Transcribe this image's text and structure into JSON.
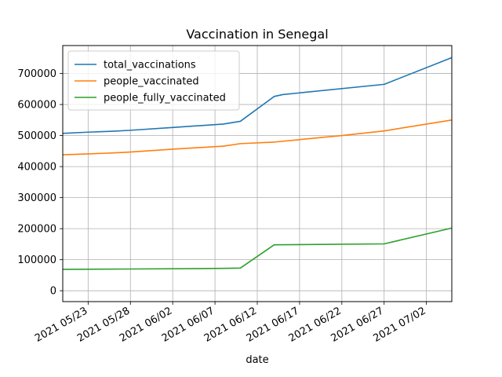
{
  "chart_data": {
    "type": "line",
    "title": "Vaccination in Senegal",
    "xlabel": "date",
    "ylabel": "",
    "x_type": "date",
    "xlim": [
      "2021-05-20",
      "2021-07-05"
    ],
    "ylim": [
      -35000,
      790000
    ],
    "x_ticks": [
      "2021-05-23",
      "2021-05-28",
      "2021-06-02",
      "2021-06-07",
      "2021-06-12",
      "2021-06-17",
      "2021-06-22",
      "2021-06-27",
      "2021-07-02"
    ],
    "x_tick_labels": [
      "2021 05/23",
      "2021 05/28",
      "2021 06/02",
      "2021 06/07",
      "2021 06/12",
      "2021 06/17",
      "2021 06/22",
      "2021 06/27",
      "2021 07/02"
    ],
    "y_ticks": [
      0,
      100000,
      200000,
      300000,
      400000,
      500000,
      600000,
      700000
    ],
    "y_tick_labels": [
      "0",
      "100000",
      "200000",
      "300000",
      "400000",
      "500000",
      "600000",
      "700000"
    ],
    "grid": true,
    "legend_position": "top-left",
    "series": [
      {
        "name": "total_vaccinations",
        "color": "#1f77b4",
        "points": [
          [
            "2021-05-20",
            507000
          ],
          [
            "2021-05-23",
            511000
          ],
          [
            "2021-05-26",
            514000
          ],
          [
            "2021-05-28",
            517000
          ],
          [
            "2021-06-02",
            526000
          ],
          [
            "2021-06-08",
            537000
          ],
          [
            "2021-06-10",
            546000
          ],
          [
            "2021-06-14",
            626000
          ],
          [
            "2021-06-15",
            632000
          ],
          [
            "2021-06-27",
            665000
          ],
          [
            "2021-07-05",
            751000
          ]
        ]
      },
      {
        "name": "people_vaccinated",
        "color": "#ff7f0e",
        "points": [
          [
            "2021-05-20",
            438000
          ],
          [
            "2021-05-23",
            441000
          ],
          [
            "2021-05-26",
            444000
          ],
          [
            "2021-05-28",
            447000
          ],
          [
            "2021-06-02",
            456000
          ],
          [
            "2021-06-08",
            466000
          ],
          [
            "2021-06-10",
            474000
          ],
          [
            "2021-06-14",
            479000
          ],
          [
            "2021-06-22",
            500000
          ],
          [
            "2021-06-27",
            515000
          ],
          [
            "2021-07-05",
            550000
          ]
        ]
      },
      {
        "name": "people_fully_vaccinated",
        "color": "#2ca02c",
        "points": [
          [
            "2021-05-20",
            69000
          ],
          [
            "2021-05-28",
            70000
          ],
          [
            "2021-06-08",
            72000
          ],
          [
            "2021-06-10",
            73000
          ],
          [
            "2021-06-14",
            148000
          ],
          [
            "2021-06-27",
            151000
          ],
          [
            "2021-07-05",
            202000
          ]
        ]
      }
    ]
  }
}
